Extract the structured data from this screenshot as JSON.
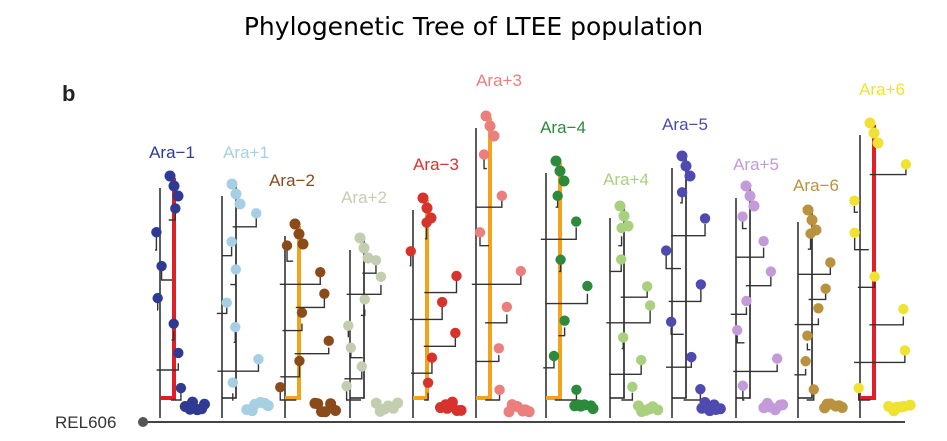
{
  "title": "Phylogenetic Tree of LTEE population",
  "panel_label": "b",
  "root_label": "REL606",
  "populations": [
    {
      "name": "Ara−1",
      "color": "#2f3a93",
      "highlight": "#e01e26"
    },
    {
      "name": "Ara+1",
      "color": "#a6cfe3",
      "highlight": "#222222"
    },
    {
      "name": "Ara−2",
      "color": "#8b4a1a",
      "highlight": "#f2a31b"
    },
    {
      "name": "Ara+2",
      "color": "#c3cdb0",
      "highlight": "#222222"
    },
    {
      "name": "Ara−3",
      "color": "#d8322d",
      "highlight": "#f2a31b"
    },
    {
      "name": "Ara+3",
      "color": "#ec7e7e",
      "highlight": "#f2a31b"
    },
    {
      "name": "Ara−4",
      "color": "#2d8a3c",
      "highlight": "#f2a31b"
    },
    {
      "name": "Ara+4",
      "color": "#a8d07f",
      "highlight": "#222222"
    },
    {
      "name": "Ara−5",
      "color": "#4e4ab0",
      "highlight": "#222222"
    },
    {
      "name": "Ara+5",
      "color": "#c39bd8",
      "highlight": "#222222"
    },
    {
      "name": "Ara−6",
      "color": "#b8923e",
      "highlight": "#222222"
    },
    {
      "name": "Ara+6",
      "color": "#f0e233",
      "highlight": "#e01e26"
    }
  ]
}
